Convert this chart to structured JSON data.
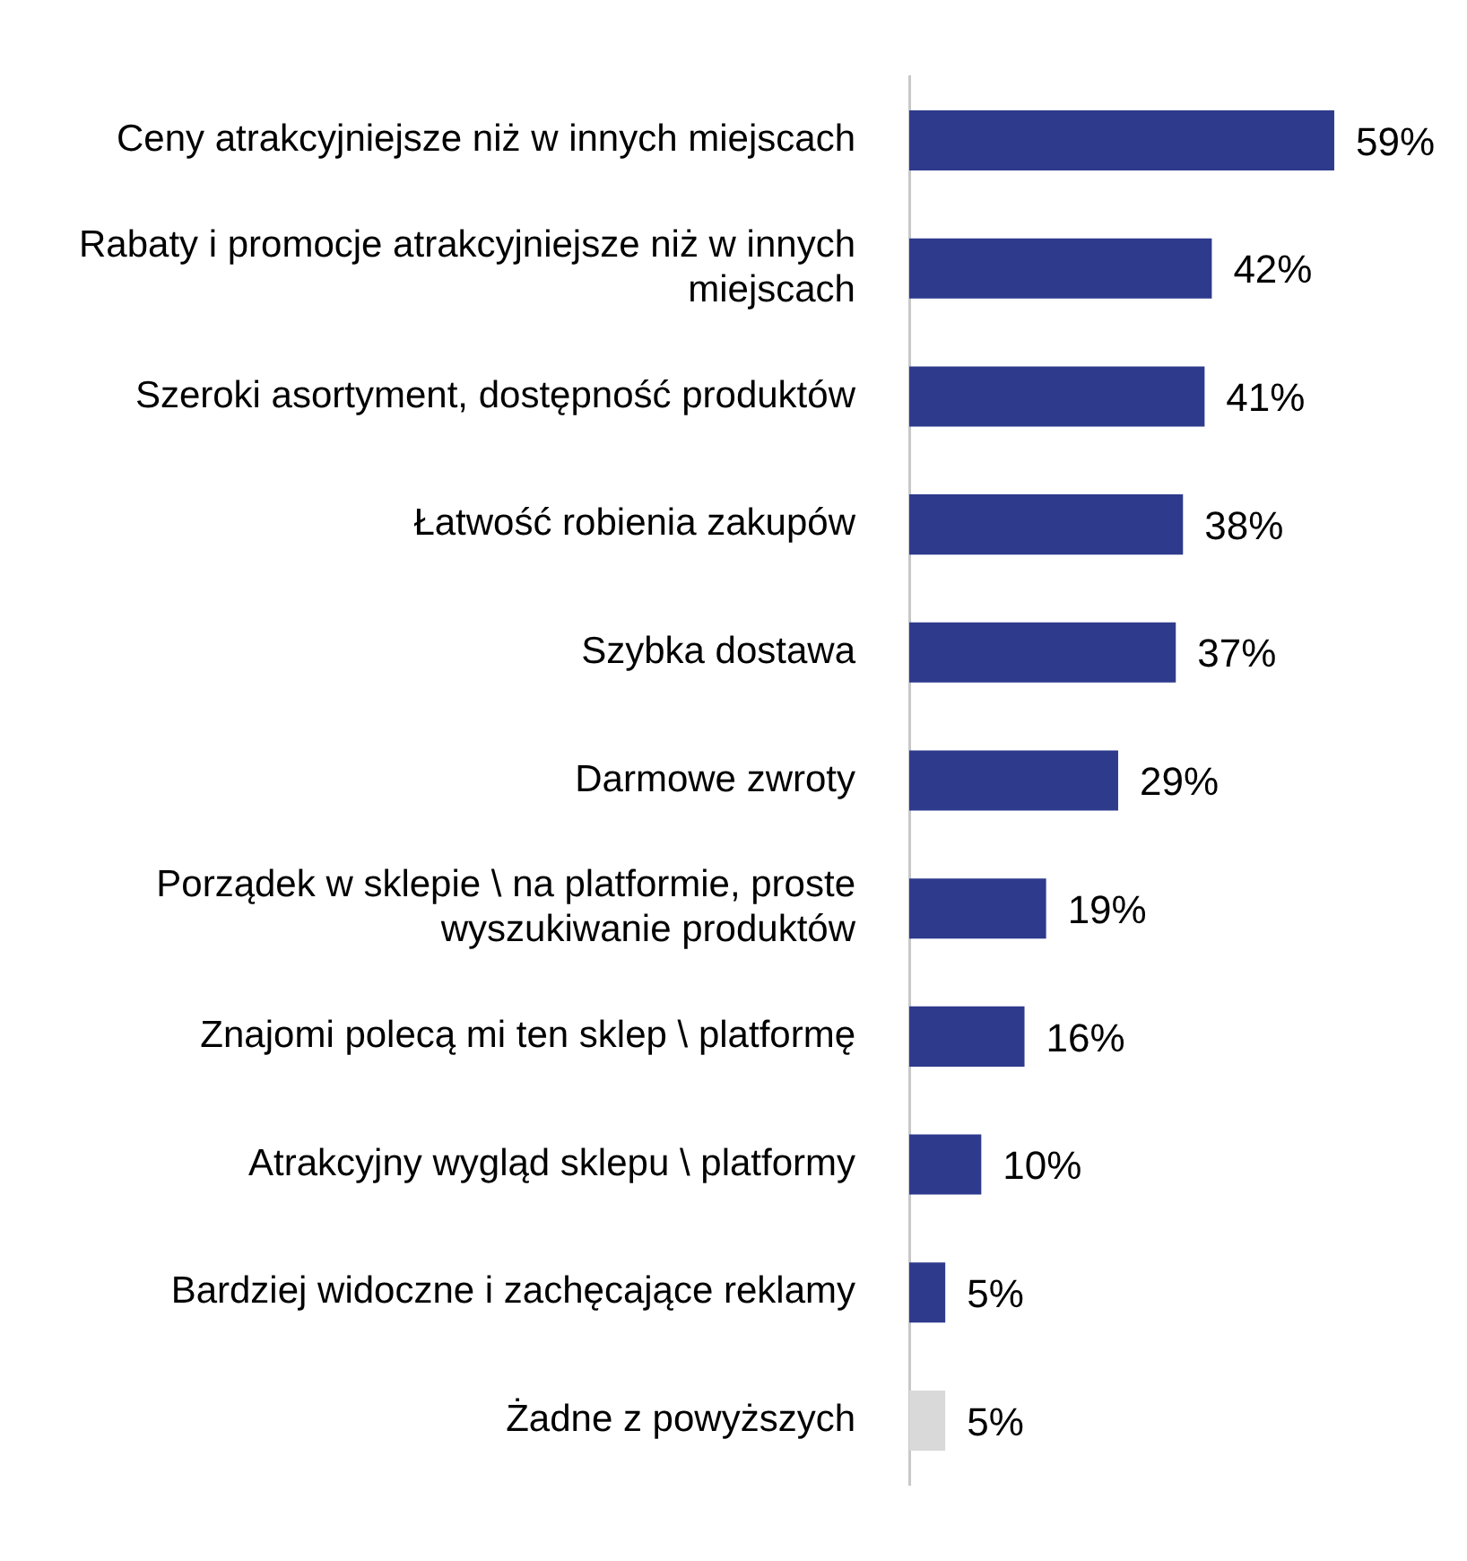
{
  "chart_data": {
    "type": "bar",
    "orientation": "horizontal",
    "categories": [
      "Ceny atrakcyjniejsze niż w innych miejscach",
      "Rabaty i promocje atrakcyjniejsze niż w innych miejscach",
      "Szeroki asortyment, dostępność produktów",
      "Łatwość robienia zakupów",
      "Szybka dostawa",
      "Darmowe zwroty",
      "Porządek w sklepie \\ na platformie, proste wyszukiwanie produktów",
      "Znajomi polecą mi ten sklep \\ platformę",
      "Atrakcyjny wygląd sklepu \\ platformy",
      "Bardziej widoczne i zachęcające reklamy",
      "Żadne z powyższych"
    ],
    "values": [
      59,
      42,
      41,
      38,
      37,
      29,
      19,
      16,
      10,
      5,
      5
    ],
    "value_labels": [
      "59%",
      "42%",
      "41%",
      "38%",
      "37%",
      "29%",
      "19%",
      "16%",
      "10%",
      "5%",
      "5%"
    ],
    "colors": [
      "#2e3a8c",
      "#2e3a8c",
      "#2e3a8c",
      "#2e3a8c",
      "#2e3a8c",
      "#2e3a8c",
      "#2e3a8c",
      "#2e3a8c",
      "#2e3a8c",
      "#2e3a8c",
      "#d9d9d9"
    ],
    "grid": false,
    "legend": false,
    "tick_labels": "y"
  }
}
